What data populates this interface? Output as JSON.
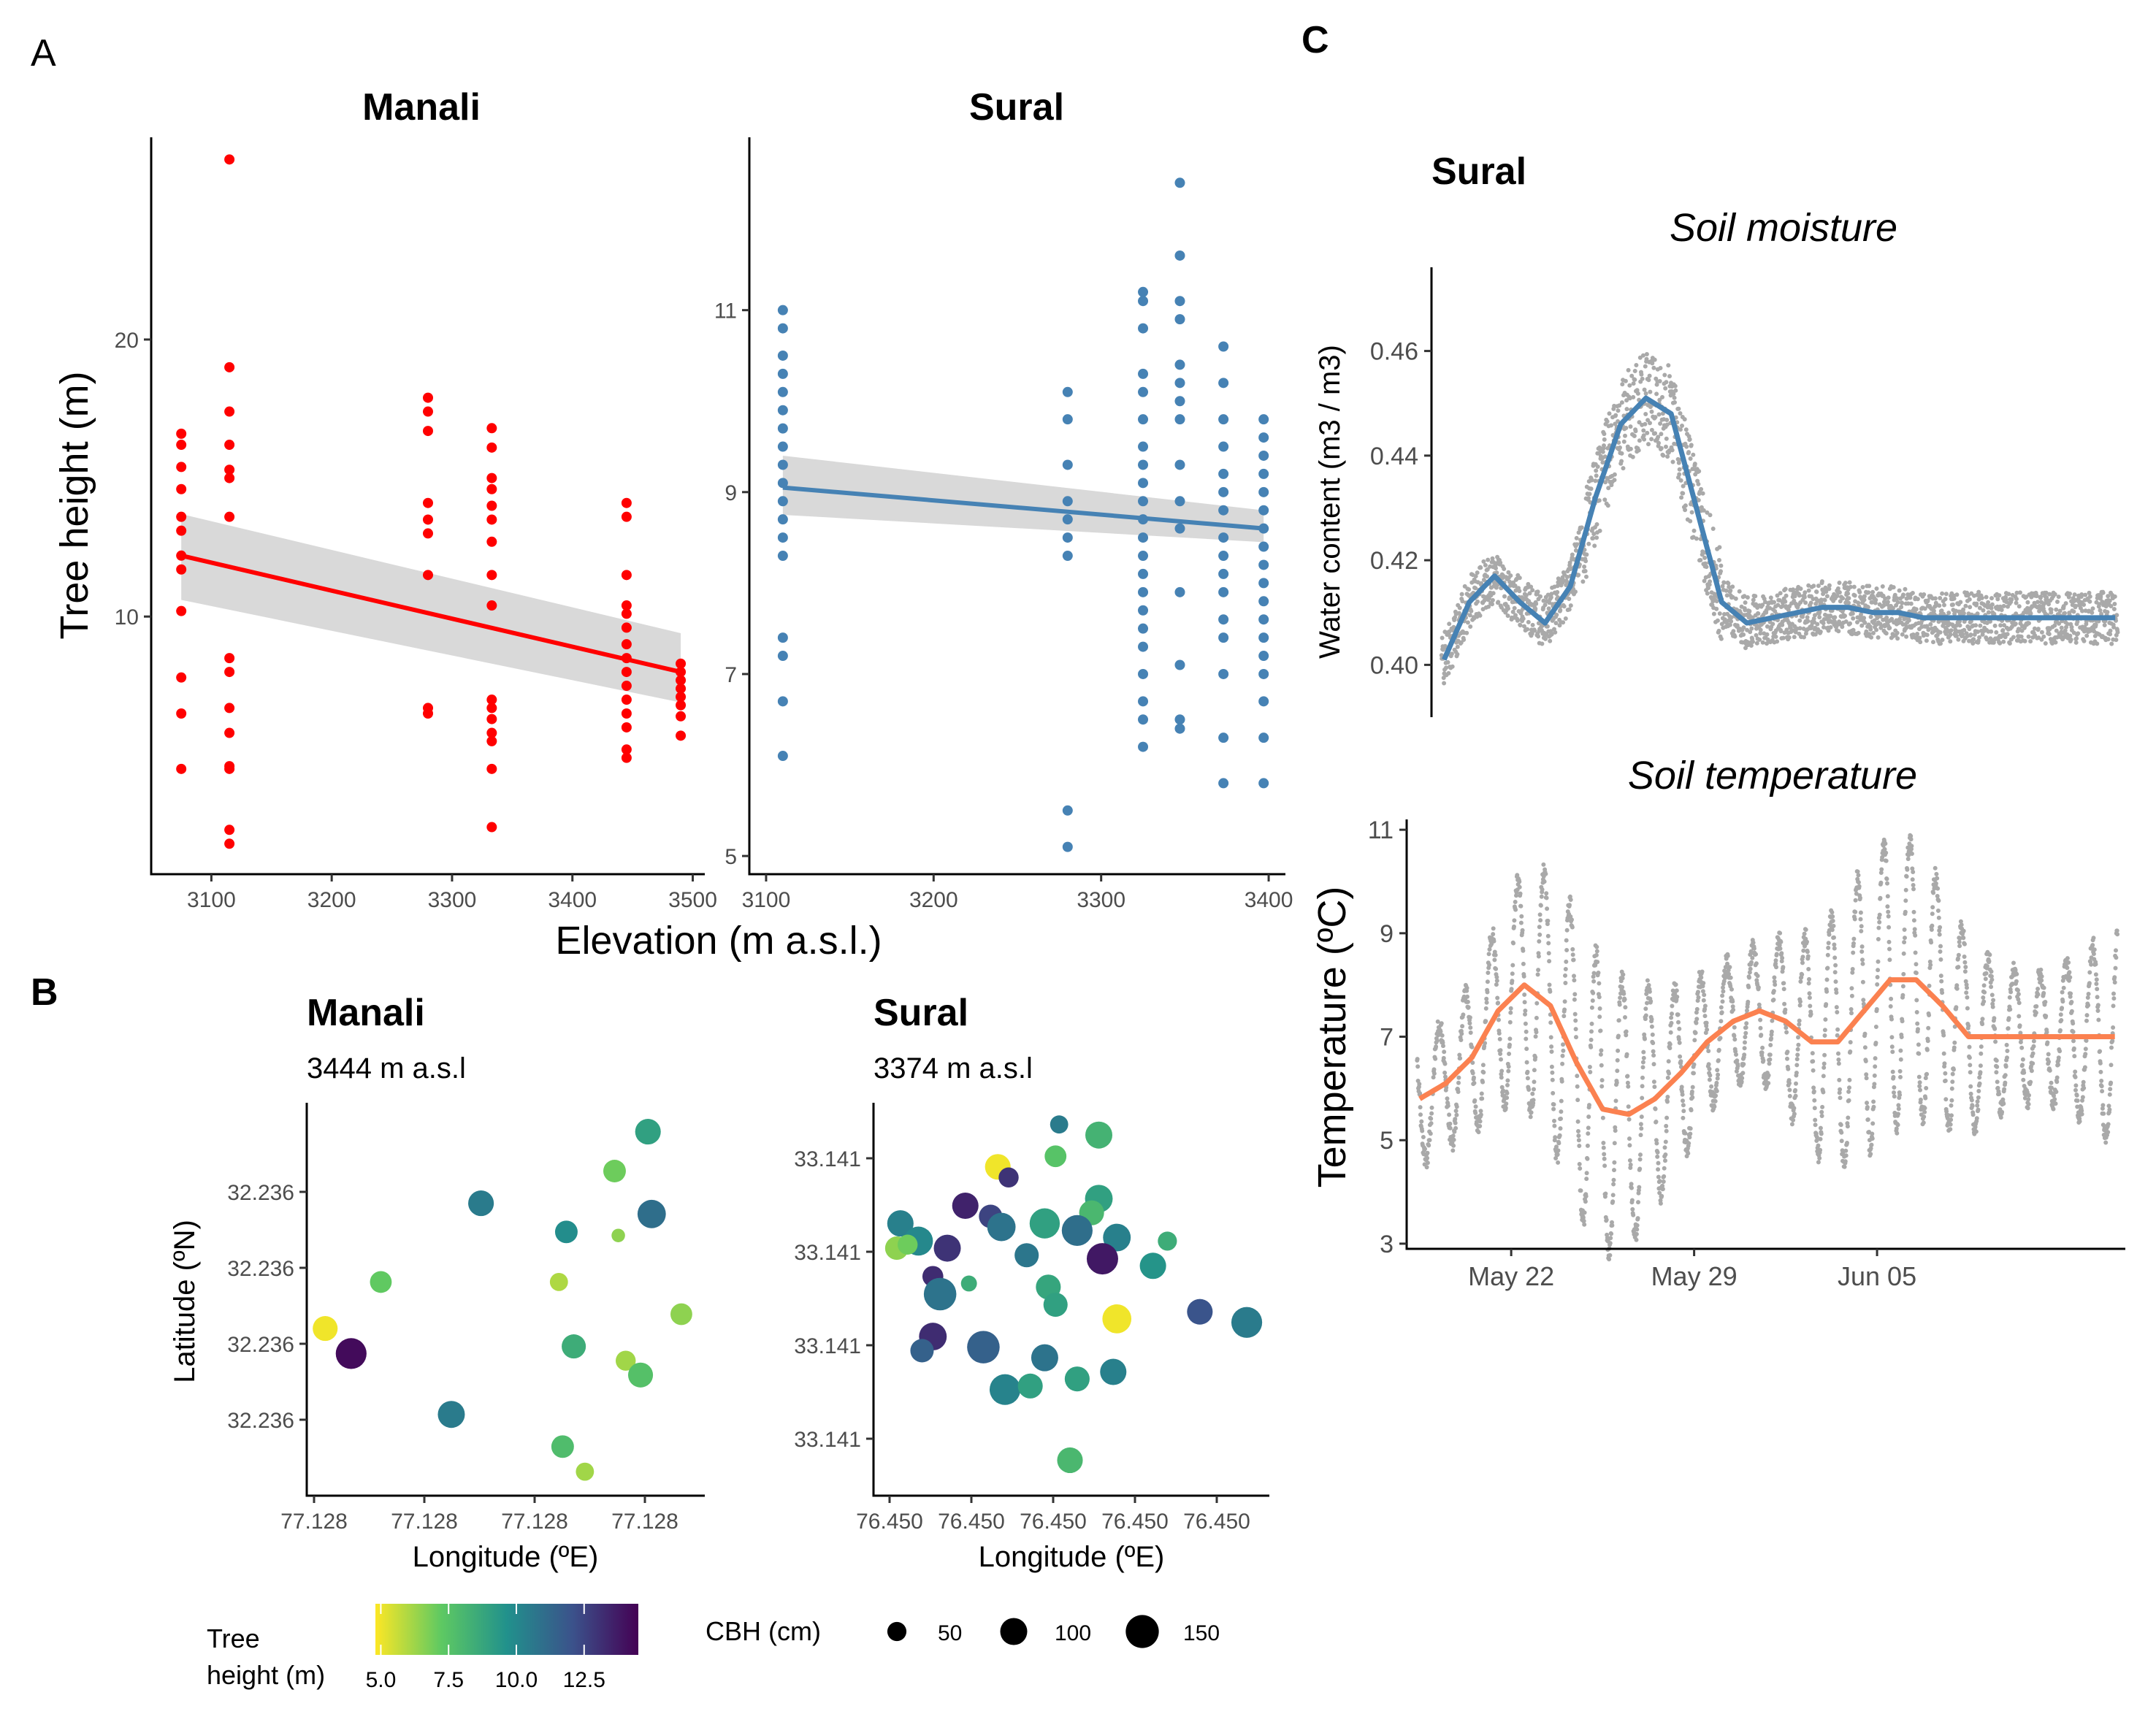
{
  "panel_labels": {
    "a": "A",
    "b": "B",
    "c": "C"
  },
  "chart_data": [
    {
      "id": "A-manali",
      "type": "scatter",
      "title": "Manali",
      "xlabel": "Elevation (m a.s.l.)",
      "ylabel": "Tree height (m)",
      "xlim": [
        3050,
        3510
      ],
      "ylim": [
        0.7,
        27.3
      ],
      "xticks": [
        3100,
        3200,
        3300,
        3400,
        3500
      ],
      "yticks": [
        10,
        20
      ],
      "point_color": "#ff0000",
      "fit": {
        "color": "#ff0000",
        "x": [
          3075,
          3490
        ],
        "y": [
          12.2,
          8.0
        ],
        "ci_color": "#d9d9d9",
        "ci_lower": [
          10.6,
          6.9
        ],
        "ci_upper": [
          13.7,
          9.4
        ]
      },
      "series": [
        {
          "x": 3075,
          "values": [
            16.6,
            16.2,
            15.4,
            14.6,
            13.6,
            13.1,
            12.2,
            11.7,
            10.2,
            7.8,
            6.5,
            4.5
          ]
        },
        {
          "x": 3115,
          "values": [
            26.5,
            19.0,
            17.4,
            16.2,
            15.3,
            15.0,
            13.6,
            8.5,
            8.0,
            6.7,
            5.8,
            4.6,
            4.5,
            2.3,
            1.8
          ]
        },
        {
          "x": 3280,
          "values": [
            17.9,
            17.4,
            16.7,
            14.1,
            13.5,
            13.0,
            11.5,
            6.7,
            6.5
          ]
        },
        {
          "x": 3333,
          "values": [
            16.8,
            16.1,
            15.0,
            14.6,
            14.0,
            13.5,
            12.7,
            11.5,
            10.4,
            7.0,
            6.7,
            6.3,
            5.8,
            5.5,
            4.5,
            2.4
          ]
        },
        {
          "x": 3445,
          "values": [
            14.1,
            13.6,
            11.5,
            10.4,
            10.1,
            9.6,
            9.0,
            8.5,
            8.0,
            7.5,
            7.0,
            6.5,
            6.0,
            5.2,
            4.9
          ]
        },
        {
          "x": 3490,
          "values": [
            8.3,
            8.0,
            7.7,
            7.4,
            7.1,
            6.8,
            6.4,
            5.7
          ]
        }
      ]
    },
    {
      "id": "A-sural",
      "type": "scatter",
      "title": "Sural",
      "xlabel": "",
      "ylabel": "",
      "xlim": [
        3090,
        3410
      ],
      "ylim": [
        4.8,
        12.9
      ],
      "xticks": [
        3100,
        3200,
        3300,
        3400
      ],
      "yticks": [
        5,
        7,
        9,
        11
      ],
      "point_color": "#4682b4",
      "fit": {
        "color": "#4682b4",
        "x": [
          3110,
          3397
        ],
        "y": [
          9.05,
          8.6
        ],
        "ci_color": "#d9d9d9",
        "ci_lower": [
          8.75,
          8.45
        ],
        "ci_upper": [
          9.4,
          8.8
        ]
      },
      "series": [
        {
          "x": 3110,
          "values": [
            11.0,
            10.8,
            10.5,
            10.3,
            10.1,
            9.9,
            9.7,
            9.5,
            9.3,
            9.1,
            8.9,
            8.7,
            8.5,
            8.3,
            7.4,
            7.2,
            6.7,
            6.1
          ]
        },
        {
          "x": 3280,
          "values": [
            10.1,
            9.8,
            9.3,
            8.9,
            8.7,
            8.5,
            8.3,
            5.5,
            5.1
          ]
        },
        {
          "x": 3325,
          "values": [
            11.2,
            11.1,
            10.8,
            10.3,
            10.1,
            9.8,
            9.5,
            9.3,
            9.1,
            8.9,
            8.7,
            8.5,
            8.3,
            8.1,
            7.9,
            7.7,
            7.5,
            7.3,
            7.0,
            6.7,
            6.5,
            6.2
          ]
        },
        {
          "x": 3347,
          "values": [
            12.4,
            11.6,
            11.1,
            10.9,
            10.4,
            10.2,
            10.0,
            9.8,
            9.3,
            8.9,
            8.6,
            7.9,
            7.1,
            6.5,
            6.4
          ]
        },
        {
          "x": 3373,
          "values": [
            10.6,
            10.2,
            9.8,
            9.5,
            9.2,
            9.0,
            8.8,
            8.5,
            8.3,
            8.1,
            7.9,
            7.6,
            7.4,
            7.0,
            6.3,
            5.8
          ]
        },
        {
          "x": 3397,
          "values": [
            9.8,
            9.6,
            9.4,
            9.2,
            9.0,
            8.8,
            8.6,
            8.4,
            8.2,
            8.0,
            7.8,
            7.6,
            7.4,
            7.2,
            7.0,
            6.7,
            6.3,
            5.8
          ]
        }
      ]
    },
    {
      "id": "B-manali",
      "type": "scatter",
      "title": "Manali",
      "subtitle": "3444 m a.s.l",
      "xlabel": "Longitude (ºE)",
      "ylabel": "Latitude (ºN)",
      "xlim": [
        0,
        10
      ],
      "ylim": [
        0,
        10
      ],
      "xtick_labels": [
        "77.128",
        "77.128",
        "77.128",
        "77.128"
      ],
      "ytick_labels": [
        "32.236",
        "32.236",
        "32.236",
        "32.236"
      ],
      "points": [
        {
          "x": 9.0,
          "y": 9.6,
          "height": 9.0,
          "cbh": 90
        },
        {
          "x": 8.1,
          "y": 8.5,
          "height": 7.0,
          "cbh": 70
        },
        {
          "x": 4.5,
          "y": 7.6,
          "height": 10.5,
          "cbh": 90
        },
        {
          "x": 9.1,
          "y": 7.3,
          "height": 11.0,
          "cbh": 110
        },
        {
          "x": 6.8,
          "y": 6.8,
          "height": 9.8,
          "cbh": 70
        },
        {
          "x": 8.2,
          "y": 6.7,
          "height": 6.5,
          "cbh": 25
        },
        {
          "x": 1.8,
          "y": 5.4,
          "height": 7.2,
          "cbh": 65
        },
        {
          "x": 6.6,
          "y": 5.4,
          "height": 6.0,
          "cbh": 45
        },
        {
          "x": 9.9,
          "y": 4.5,
          "height": 6.5,
          "cbh": 65
        },
        {
          "x": 0.3,
          "y": 4.1,
          "height": 5.0,
          "cbh": 85
        },
        {
          "x": 1.0,
          "y": 3.4,
          "height": 14.2,
          "cbh": 130
        },
        {
          "x": 7.0,
          "y": 3.6,
          "height": 8.5,
          "cbh": 80
        },
        {
          "x": 8.4,
          "y": 3.2,
          "height": 6.2,
          "cbh": 55
        },
        {
          "x": 8.8,
          "y": 2.8,
          "height": 7.6,
          "cbh": 85
        },
        {
          "x": 3.7,
          "y": 1.7,
          "height": 10.5,
          "cbh": 100
        },
        {
          "x": 6.7,
          "y": 0.8,
          "height": 7.8,
          "cbh": 70
        },
        {
          "x": 7.3,
          "y": 0.1,
          "height": 6.2,
          "cbh": 45
        }
      ]
    },
    {
      "id": "B-sural",
      "type": "scatter",
      "title": "Sural",
      "subtitle": "3374 m a.s.l",
      "xlabel": "Longitude (ºE)",
      "ylabel": "",
      "xlim": [
        0,
        10
      ],
      "ylim": [
        0,
        10
      ],
      "xtick_labels": [
        "76.450",
        "76.450",
        "76.450",
        "76.450",
        "76.450"
      ],
      "ytick_labels": [
        "33.141",
        "33.141",
        "33.141",
        "33.141"
      ],
      "points": [
        {
          "x": 4.7,
          "y": 9.8,
          "height": 10.5,
          "cbh": 45
        },
        {
          "x": 5.8,
          "y": 9.5,
          "height": 8.2,
          "cbh": 100
        },
        {
          "x": 3.0,
          "y": 8.6,
          "height": 5.0,
          "cbh": 90
        },
        {
          "x": 3.3,
          "y": 8.3,
          "height": 13.0,
          "cbh": 55
        },
        {
          "x": 4.6,
          "y": 8.9,
          "height": 7.5,
          "cbh": 65
        },
        {
          "x": 2.1,
          "y": 7.5,
          "height": 13.5,
          "cbh": 95
        },
        {
          "x": 2.8,
          "y": 7.2,
          "height": 12.5,
          "cbh": 75
        },
        {
          "x": 5.8,
          "y": 7.7,
          "height": 9.0,
          "cbh": 105
        },
        {
          "x": 5.6,
          "y": 7.3,
          "height": 8.0,
          "cbh": 85
        },
        {
          "x": 0.3,
          "y": 7.0,
          "height": 10.3,
          "cbh": 95
        },
        {
          "x": 4.3,
          "y": 7.0,
          "height": 9.0,
          "cbh": 125
        },
        {
          "x": 5.2,
          "y": 6.8,
          "height": 11.0,
          "cbh": 130
        },
        {
          "x": 3.1,
          "y": 6.9,
          "height": 10.8,
          "cbh": 110
        },
        {
          "x": 0.8,
          "y": 6.5,
          "height": 10.0,
          "cbh": 115
        },
        {
          "x": 6.3,
          "y": 6.6,
          "height": 10.3,
          "cbh": 105
        },
        {
          "x": 7.7,
          "y": 6.5,
          "height": 8.5,
          "cbh": 50
        },
        {
          "x": 0.2,
          "y": 6.3,
          "height": 6.5,
          "cbh": 75
        },
        {
          "x": 0.5,
          "y": 6.4,
          "height": 7.0,
          "cbh": 55
        },
        {
          "x": 1.6,
          "y": 6.3,
          "height": 13.0,
          "cbh": 100
        },
        {
          "x": 3.8,
          "y": 6.1,
          "height": 10.7,
          "cbh": 80
        },
        {
          "x": 5.9,
          "y": 6.0,
          "height": 13.8,
          "cbh": 135
        },
        {
          "x": 7.3,
          "y": 5.8,
          "height": 9.5,
          "cbh": 95
        },
        {
          "x": 1.2,
          "y": 5.5,
          "height": 13.2,
          "cbh": 60
        },
        {
          "x": 2.2,
          "y": 5.3,
          "height": 8.5,
          "cbh": 35
        },
        {
          "x": 4.4,
          "y": 5.2,
          "height": 8.8,
          "cbh": 85
        },
        {
          "x": 1.4,
          "y": 5.0,
          "height": 10.8,
          "cbh": 145
        },
        {
          "x": 4.6,
          "y": 4.7,
          "height": 9.0,
          "cbh": 80
        },
        {
          "x": 6.3,
          "y": 4.3,
          "height": 5.0,
          "cbh": 115
        },
        {
          "x": 8.6,
          "y": 4.5,
          "height": 12.0,
          "cbh": 90
        },
        {
          "x": 9.9,
          "y": 4.2,
          "height": 10.5,
          "cbh": 130
        },
        {
          "x": 1.2,
          "y": 3.8,
          "height": 13.2,
          "cbh": 105
        },
        {
          "x": 0.9,
          "y": 3.4,
          "height": 11.5,
          "cbh": 75
        },
        {
          "x": 2.6,
          "y": 3.5,
          "height": 11.5,
          "cbh": 145
        },
        {
          "x": 4.3,
          "y": 3.2,
          "height": 10.8,
          "cbh": 100
        },
        {
          "x": 6.2,
          "y": 2.8,
          "height": 10.3,
          "cbh": 95
        },
        {
          "x": 5.2,
          "y": 2.6,
          "height": 9.0,
          "cbh": 85
        },
        {
          "x": 3.2,
          "y": 2.3,
          "height": 10.2,
          "cbh": 130
        },
        {
          "x": 3.9,
          "y": 2.4,
          "height": 9.0,
          "cbh": 85
        },
        {
          "x": 5.0,
          "y": 0.3,
          "height": 8.0,
          "cbh": 90
        }
      ]
    },
    {
      "id": "C-moisture",
      "type": "line",
      "title": "Sural",
      "subtitle": "Soil moisture",
      "xlabel": "",
      "ylabel": "Water content (m3 / m3)",
      "xlim": [
        -4,
        23.5
      ],
      "ylim": [
        0.39,
        0.476
      ],
      "xtick_labels": [],
      "yticks": [
        0.4,
        0.42,
        0.44,
        0.46
      ],
      "raw_color": "#a9a9a9",
      "smooth_color": "#4682b4",
      "smooth": {
        "x": [
          -3.5,
          -2.5,
          -1.5,
          -0.5,
          0.5,
          1.5,
          2.5,
          3.5,
          4.5,
          5.5,
          6.5,
          7.5,
          8.5,
          9.5,
          10.5,
          11.5,
          12.5,
          13.5,
          14.5,
          15.5,
          16.5,
          17.5,
          18.5,
          19.5,
          20.5,
          21.5,
          22.5,
          23.2
        ],
        "y": [
          0.401,
          0.412,
          0.417,
          0.412,
          0.408,
          0.415,
          0.432,
          0.446,
          0.451,
          0.448,
          0.43,
          0.412,
          0.408,
          0.409,
          0.41,
          0.411,
          0.411,
          0.41,
          0.41,
          0.409,
          0.409,
          0.409,
          0.409,
          0.409,
          0.409,
          0.409,
          0.409,
          0.409
        ]
      }
    },
    {
      "id": "C-temperature",
      "type": "line",
      "title": "",
      "subtitle": "Soil temperature",
      "xlabel": "",
      "ylabel": "Temperature (ºC)",
      "xlim": [
        -4,
        23.5
      ],
      "ylim": [
        2.9,
        11.2
      ],
      "xticks": [
        0,
        7,
        14
      ],
      "xtick_labels": [
        "May 22",
        "May 29",
        "Jun 05"
      ],
      "yticks": [
        3,
        5,
        7,
        9,
        11
      ],
      "raw_color": "#a9a9a9",
      "smooth_color": "#fb8150",
      "smooth": {
        "x": [
          -3.5,
          -2.5,
          -1.5,
          -0.5,
          0.5,
          1.5,
          2.5,
          3.5,
          4.5,
          5.5,
          6.5,
          7.5,
          8.5,
          9.5,
          10.5,
          11.5,
          12.5,
          13.5,
          14.5,
          15.5,
          16.5,
          17.5,
          18.5,
          19.5,
          20.5,
          21.5,
          22.5,
          23.2
        ],
        "y": [
          5.8,
          6.1,
          6.6,
          7.5,
          8.0,
          7.6,
          6.5,
          5.6,
          5.5,
          5.8,
          6.3,
          6.9,
          7.3,
          7.5,
          7.3,
          6.9,
          6.9,
          7.5,
          8.1,
          8.1,
          7.6,
          7.0,
          7.0,
          7.0,
          7.0,
          7.0,
          7.0,
          7.0
        ]
      }
    }
  ],
  "legend": {
    "color_title": "Tree\nheight (m)",
    "color_title_line1": "Tree",
    "color_title_line2": "height (m)",
    "color_ticks": [
      "5.0",
      "7.5",
      "10.0",
      "12.5"
    ],
    "color_tick_values": [
      5.0,
      7.5,
      10.0,
      12.5
    ],
    "color_range": [
      4.8,
      14.5
    ],
    "size_title": "CBH (cm)",
    "size_labels": [
      "50",
      "100",
      "150"
    ],
    "size_values": [
      50,
      100,
      150
    ]
  }
}
